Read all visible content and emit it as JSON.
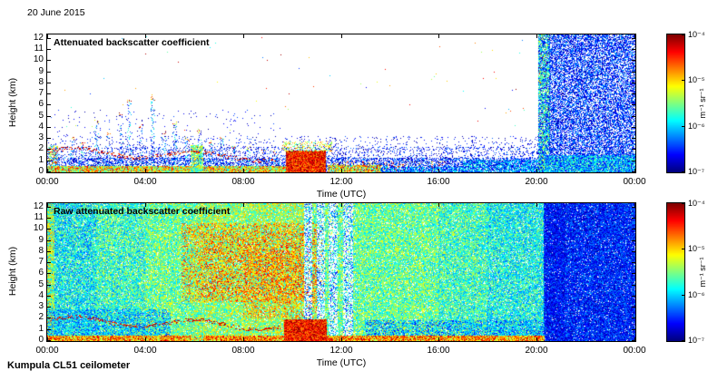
{
  "figure": {
    "date_label": "20 June 2015",
    "footer_label": "Kumpula CL51 ceilometer",
    "background": "#ffffff"
  },
  "colorbar": {
    "unit_label": "m⁻¹ sr⁻¹",
    "tick_labels": [
      "10⁻⁴",
      "10⁻⁵",
      "10⁻⁶",
      "10⁻⁷"
    ],
    "colormap": "jet",
    "scale": {
      "min": 1e-07,
      "max": 0.0001,
      "log": true
    }
  },
  "chart_data": [
    {
      "type": "heatmap",
      "title": "Attenuated backscatter coefficient",
      "xlabel": "Time (UTC)",
      "ylabel": "Height (km)",
      "x_tick_labels": [
        "00:00",
        "04:00",
        "08:00",
        "12:00",
        "16:00",
        "20:00",
        "00:00"
      ],
      "x_tick_hours": [
        0,
        4,
        8,
        12,
        16,
        20,
        24
      ],
      "x_range_hours": [
        0,
        24
      ],
      "y_tick_labels": [
        "0",
        "1",
        "2",
        "3",
        "4",
        "5",
        "6",
        "7",
        "8",
        "9",
        "10",
        "11",
        "12"
      ],
      "y_tick_km": [
        0,
        1,
        2,
        3,
        4,
        5,
        6,
        7,
        8,
        9,
        10,
        11,
        12
      ],
      "y_range_km": [
        0,
        12.3
      ],
      "value_scale": {
        "min": 1e-07,
        "max": 0.0001,
        "units": "m⁻¹ sr⁻¹",
        "colormap": "jet",
        "log": true
      },
      "features": [
        {
          "name": "low-noise-band-1",
          "shape": "fill",
          "t": [
            0,
            20.4
          ],
          "h": [
            0,
            1.2
          ],
          "density": 0.5,
          "v": [
            0.02,
            0.3
          ]
        },
        {
          "name": "low-noise-band-2",
          "shape": "fill",
          "t": [
            0,
            20.4
          ],
          "h": [
            1.2,
            2.2
          ],
          "density": 0.2,
          "v": [
            0.02,
            0.26
          ]
        },
        {
          "name": "low-noise-band-3",
          "shape": "fill",
          "t": [
            0,
            20.4
          ],
          "h": [
            2.2,
            3.2
          ],
          "density": 0.07,
          "v": [
            0.02,
            0.22
          ]
        },
        {
          "name": "sparse-high-noise",
          "shape": "fill",
          "t": [
            0,
            9.5
          ],
          "h": [
            3.2,
            5.5
          ],
          "density": 0.015,
          "v": [
            0.02,
            0.2
          ]
        },
        {
          "name": "sporadic-noise-dots",
          "shape": "fill",
          "t": [
            0,
            20.3
          ],
          "h": [
            3.5,
            12.3
          ],
          "density": 0.0012,
          "v": [
            0.1,
            1
          ]
        },
        {
          "name": "left-edge-plume",
          "shape": "fill",
          "t": [
            0.05,
            0.4
          ],
          "h": [
            0,
            2.4
          ],
          "density": 0.5,
          "v": [
            0.2,
            0.85
          ]
        },
        {
          "name": "cloud-spikes",
          "shape": "spikes",
          "width": 0.16,
          "density": 0.45,
          "v": [
            0.03,
            0.45
          ],
          "cap_v": [
            0.5,
            1
          ],
          "spikes": [
            {
              "t": 1.0,
              "top": 3.1
            },
            {
              "t": 1.45,
              "top": 2.5
            },
            {
              "t": 2.0,
              "top": 4.6
            },
            {
              "t": 2.5,
              "top": 3.3
            },
            {
              "t": 3.0,
              "top": 5.1
            },
            {
              "t": 3.35,
              "top": 6.3
            },
            {
              "t": 3.8,
              "top": 4.1
            },
            {
              "t": 4.3,
              "top": 6.6
            },
            {
              "t": 4.75,
              "top": 3.6
            },
            {
              "t": 5.2,
              "top": 4.3
            },
            {
              "t": 5.7,
              "top": 2.9
            },
            {
              "t": 6.2,
              "top": 3.7
            },
            {
              "t": 6.65,
              "top": 2.7
            },
            {
              "t": 7.1,
              "top": 3.1
            },
            {
              "t": 7.6,
              "top": 2.3
            },
            {
              "t": 8.2,
              "top": 2.1
            },
            {
              "t": 8.8,
              "top": 1.9
            },
            {
              "t": 9.3,
              "top": 1.7
            }
          ]
        },
        {
          "name": "surface-aerosol-layer",
          "shape": "fill",
          "t": [
            0,
            9.8
          ],
          "h": [
            0,
            0.45
          ],
          "density": 1,
          "v": [
            0.35,
            0.9
          ]
        },
        {
          "name": "green-plume",
          "shape": "fill",
          "t": [
            5.85,
            6.35
          ],
          "h": [
            0,
            2.4
          ],
          "density": 0.8,
          "v": [
            0.3,
            0.7
          ]
        },
        {
          "name": "residual-layer-dotline",
          "shape": "dotline",
          "t": [
            0,
            9.3
          ],
          "base": 1.85,
          "amp": 0.35,
          "freq": 1.3,
          "slope": -0.06,
          "jitter": 0.3,
          "density": 0.45,
          "v": [
            0.75,
            1
          ]
        },
        {
          "name": "cloud-red-blob",
          "shape": "fill",
          "t": [
            9.75,
            11.35
          ],
          "h": [
            0,
            1.9
          ],
          "density": 1,
          "v": [
            0.7,
            1
          ]
        },
        {
          "name": "cloud-blob-fringe",
          "shape": "fill",
          "t": [
            9.6,
            11.6
          ],
          "h": [
            1.9,
            2.7
          ],
          "density": 0.35,
          "v": [
            0.4,
            0.8
          ]
        },
        {
          "name": "post-cloud-surface",
          "shape": "fill",
          "t": [
            11.45,
            13.6
          ],
          "h": [
            0,
            0.55
          ],
          "density": 0.9,
          "v": [
            0.35,
            0.9
          ]
        },
        {
          "name": "afternoon-specks",
          "shape": "fill",
          "t": [
            11.5,
            16.2
          ],
          "h": [
            0.1,
            0.9
          ],
          "density": 0.12,
          "v": [
            0.55,
            1
          ]
        },
        {
          "name": "evening-shallow-layer",
          "shape": "fill",
          "t": [
            13.6,
            17
          ],
          "h": [
            0,
            0.4
          ],
          "density": 0.7,
          "v": [
            0.08,
            0.42
          ]
        },
        {
          "name": "evening-rising-layer",
          "shape": "fill",
          "t": [
            17,
            20.35
          ],
          "h": [
            0,
            1.05
          ],
          "density": 0.65,
          "v": [
            0.08,
            0.45
          ]
        },
        {
          "name": "rain-onset-stripe",
          "shape": "fill",
          "t": [
            20.05,
            20.5
          ],
          "h": [
            0,
            12.3
          ],
          "density": 0.85,
          "v": [
            0.05,
            0.6
          ]
        },
        {
          "name": "stripe-bright-dots",
          "shape": "fill",
          "t": [
            20.05,
            20.5
          ],
          "h": [
            8,
            10.5
          ],
          "density": 0.03,
          "v": [
            0.7,
            1
          ]
        },
        {
          "name": "night-noise-block",
          "shape": "fill",
          "t": [
            20.5,
            24
          ],
          "h": [
            0,
            12.3
          ],
          "density": 0.62,
          "v": [
            0.03,
            0.3
          ]
        },
        {
          "name": "night-noise-low",
          "shape": "fill",
          "t": [
            20.35,
            24
          ],
          "h": [
            0,
            1.5
          ],
          "density": 0.9,
          "v": [
            0.1,
            0.5
          ]
        }
      ]
    },
    {
      "type": "heatmap",
      "title": "Raw attenuated backscatter coefficient",
      "xlabel": "Time (UTC)",
      "ylabel": "Height (km)",
      "x_tick_labels": [
        "00:00",
        "04:00",
        "08:00",
        "12:00",
        "16:00",
        "20:00",
        "00:00"
      ],
      "x_tick_hours": [
        0,
        4,
        8,
        12,
        16,
        20,
        24
      ],
      "x_range_hours": [
        0,
        24
      ],
      "y_tick_labels": [
        "0",
        "1",
        "2",
        "3",
        "4",
        "5",
        "6",
        "7",
        "8",
        "9",
        "10",
        "11",
        "12"
      ],
      "y_tick_km": [
        0,
        1,
        2,
        3,
        4,
        5,
        6,
        7,
        8,
        9,
        10,
        11,
        12
      ],
      "y_range_km": [
        0,
        12.3
      ],
      "value_scale": {
        "min": 1e-07,
        "max": 0.0001,
        "units": "m⁻¹ sr⁻¹",
        "colormap": "jet",
        "log": true
      },
      "features": [
        {
          "name": "base-00-02",
          "shape": "fill",
          "t": [
            0,
            2
          ],
          "h": [
            0,
            12.3
          ],
          "density": 0.93,
          "v": [
            0.2,
            0.55
          ]
        },
        {
          "name": "base-02-04",
          "shape": "fill",
          "t": [
            2,
            4
          ],
          "h": [
            0,
            12.3
          ],
          "density": 0.93,
          "v": [
            0.25,
            0.6
          ]
        },
        {
          "name": "base-04-06",
          "shape": "fill",
          "t": [
            4,
            6
          ],
          "h": [
            0,
            12.3
          ],
          "density": 0.93,
          "v": [
            0.3,
            0.65
          ]
        },
        {
          "name": "base-06-08",
          "shape": "fill",
          "t": [
            6,
            8.5
          ],
          "h": [
            0,
            12.3
          ],
          "density": 0.94,
          "v": [
            0.33,
            0.7
          ]
        },
        {
          "name": "base-08-10",
          "shape": "fill",
          "t": [
            8.5,
            10.5
          ],
          "h": [
            0,
            12.3
          ],
          "density": 0.94,
          "v": [
            0.33,
            0.72
          ]
        },
        {
          "name": "base-10-12",
          "shape": "fill",
          "t": [
            10.5,
            12.7
          ],
          "h": [
            0,
            12.3
          ],
          "density": 0.9,
          "v": [
            0.3,
            0.65
          ]
        },
        {
          "name": "base-12-16",
          "shape": "fill",
          "t": [
            12.7,
            16
          ],
          "h": [
            0,
            12.3
          ],
          "density": 0.93,
          "v": [
            0.3,
            0.64
          ]
        },
        {
          "name": "base-16-18",
          "shape": "fill",
          "t": [
            16,
            18
          ],
          "h": [
            0,
            12.3
          ],
          "density": 0.93,
          "v": [
            0.26,
            0.6
          ]
        },
        {
          "name": "base-18-20",
          "shape": "fill",
          "t": [
            18,
            20.3
          ],
          "h": [
            0,
            12.3
          ],
          "density": 0.92,
          "v": [
            0.22,
            0.55
          ]
        },
        {
          "name": "night-blue-block",
          "shape": "fill",
          "t": [
            20.3,
            24
          ],
          "h": [
            0,
            12.3
          ],
          "density": 0.95,
          "v": [
            0.03,
            0.28
          ]
        },
        {
          "name": "left-edge-column",
          "shape": "fill",
          "t": [
            0,
            0.25
          ],
          "h": [
            0,
            12.3
          ],
          "density": 0.95,
          "v": [
            0.3,
            0.75
          ]
        },
        {
          "name": "low-cyan-region",
          "shape": "fill",
          "t": [
            0,
            5
          ],
          "h": [
            0.4,
            2.8
          ],
          "density": 0.5,
          "v": [
            0.15,
            0.45
          ]
        },
        {
          "name": "morning-high-orange",
          "shape": "fill",
          "t": [
            5.5,
            11.3
          ],
          "h": [
            3.5,
            10.5
          ],
          "density": 0.35,
          "v": [
            0.58,
            0.88
          ]
        },
        {
          "name": "midday-orange",
          "shape": "fill",
          "t": [
            8,
            11
          ],
          "h": [
            2,
            8
          ],
          "density": 0.3,
          "v": [
            0.6,
            0.88
          ]
        },
        {
          "name": "high-red-specks",
          "shape": "fill",
          "t": [
            6.3,
            10.9
          ],
          "h": [
            4,
            9.8
          ],
          "density": 0.1,
          "v": [
            0.75,
            0.97
          ]
        },
        {
          "name": "attenuation-stripe-1-erase",
          "shape": "erase",
          "t": [
            10.5,
            10.78
          ],
          "h": [
            0.3,
            12.3
          ],
          "density": 0.75
        },
        {
          "name": "attenuation-stripe-1",
          "shape": "fill",
          "t": [
            10.5,
            10.78
          ],
          "h": [
            0.3,
            12.3
          ],
          "density": 0.3,
          "v": [
            0.1,
            0.45
          ]
        },
        {
          "name": "attenuation-stripe-2-erase",
          "shape": "erase",
          "t": [
            11.02,
            11.3
          ],
          "h": [
            0.3,
            12.3
          ],
          "density": 0.75
        },
        {
          "name": "attenuation-stripe-2",
          "shape": "fill",
          "t": [
            11.02,
            11.3
          ],
          "h": [
            0.3,
            12.3
          ],
          "density": 0.3,
          "v": [
            0.1,
            0.45
          ]
        },
        {
          "name": "attenuation-stripe-3-erase",
          "shape": "erase",
          "t": [
            11.5,
            11.85
          ],
          "h": [
            0.3,
            12.3
          ],
          "density": 0.75
        },
        {
          "name": "attenuation-stripe-3",
          "shape": "fill",
          "t": [
            11.5,
            11.85
          ],
          "h": [
            0.3,
            12.3
          ],
          "density": 0.3,
          "v": [
            0.1,
            0.45
          ]
        },
        {
          "name": "attenuation-stripe-4-erase",
          "shape": "erase",
          "t": [
            12.1,
            12.45
          ],
          "h": [
            0.3,
            12.3
          ],
          "density": 0.75
        },
        {
          "name": "attenuation-stripe-4",
          "shape": "fill",
          "t": [
            12.1,
            12.45
          ],
          "h": [
            0.3,
            12.3
          ],
          "density": 0.3,
          "v": [
            0.1,
            0.45
          ]
        },
        {
          "name": "evening-low-blue",
          "shape": "fill",
          "t": [
            13,
            20.3
          ],
          "h": [
            0.35,
            1.8
          ],
          "density": 0.45,
          "v": [
            0.12,
            0.4
          ]
        },
        {
          "name": "surface-hot-layer",
          "shape": "fill",
          "t": [
            0,
            20.3
          ],
          "h": [
            0,
            0.4
          ],
          "density": 1,
          "v": [
            0.5,
            0.95
          ]
        },
        {
          "name": "green-plume",
          "shape": "fill",
          "t": [
            5.85,
            6.35
          ],
          "h": [
            0,
            2.4
          ],
          "density": 0.75,
          "v": [
            0.3,
            0.7
          ]
        },
        {
          "name": "residual-layer-dotline",
          "shape": "dotline",
          "t": [
            0,
            9.5
          ],
          "base": 1.85,
          "amp": 0.35,
          "freq": 1.3,
          "slope": -0.06,
          "jitter": 0.3,
          "density": 0.55,
          "v": [
            0.78,
            1
          ]
        },
        {
          "name": "cloud-red-blob",
          "shape": "fill",
          "t": [
            9.7,
            11.4
          ],
          "h": [
            0,
            1.9
          ],
          "density": 1,
          "v": [
            0.72,
            1
          ]
        },
        {
          "name": "night-dense-column",
          "shape": "fill",
          "t": [
            20.35,
            21.15
          ],
          "h": [
            0,
            12.3
          ],
          "density": 0.5,
          "v": [
            0.03,
            0.2
          ]
        }
      ]
    }
  ]
}
